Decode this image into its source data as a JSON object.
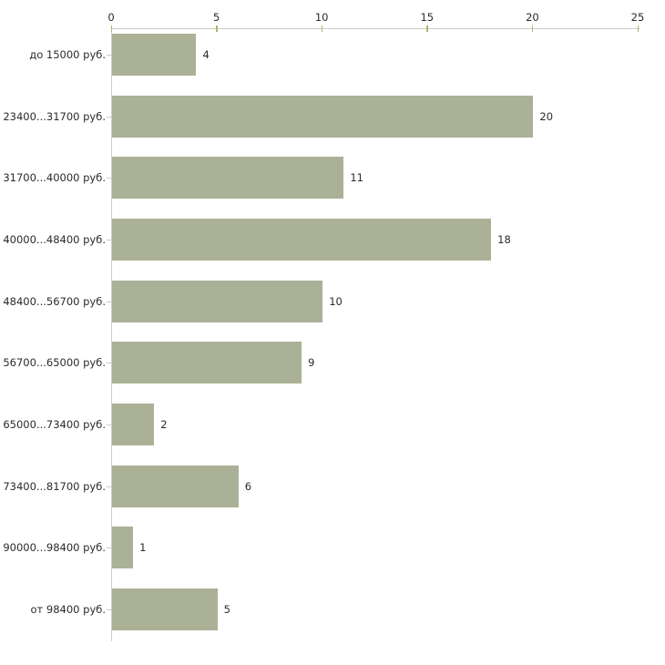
{
  "chart_data": {
    "type": "bar",
    "orientation": "horizontal",
    "title": "",
    "xlabel": "",
    "ylabel": "",
    "categories": [
      "до 15000 руб.",
      "23400...31700 руб.",
      "31700...40000 руб.",
      "40000...48400 руб.",
      "48400...56700 руб.",
      "56700...65000 руб.",
      "65000...73400 руб.",
      "73400...81700 руб.",
      "90000...98400 руб.",
      "от 98400 руб."
    ],
    "values": [
      4,
      20,
      11,
      18,
      10,
      9,
      2,
      6,
      1,
      5
    ],
    "value_labels_shown": true,
    "xlim": [
      0,
      25
    ],
    "x_ticks": [
      0,
      5,
      10,
      15,
      20,
      25
    ],
    "x_axis_position": "top",
    "grid": false,
    "legend": null,
    "colors": {
      "bar": "#abb196",
      "axis_line": "#ccccc4",
      "tick_mark": "#b3b36b",
      "text": "#2b2b2b",
      "background": "#ffffff"
    }
  }
}
